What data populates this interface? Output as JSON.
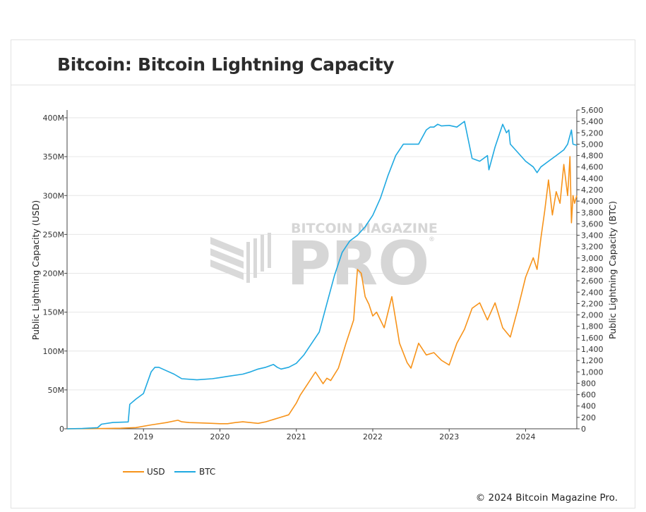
{
  "header": {
    "title": "Bitcoin: Bitcoin Lightning Capacity"
  },
  "footer": {
    "copyright": "© 2024 Bitcoin Magazine Pro."
  },
  "watermark": {
    "top_text": "BITCOIN MAGAZINE",
    "big_text": "PRO",
    "registered": "®"
  },
  "colors": {
    "usd": "#f7931a",
    "btc": "#1fa9e1",
    "grid": "#e6e6e6",
    "axis": "#444444"
  },
  "chart_data": {
    "type": "line",
    "x_ticks": [
      "2019",
      "2020",
      "2021",
      "2022",
      "2023",
      "2024"
    ],
    "x_range": [
      2018.0,
      2024.67
    ],
    "y_left": {
      "label": "Public Lightning Capacity (USD)",
      "range": [
        0,
        410000000
      ],
      "ticks": [
        0,
        50000000,
        100000000,
        150000000,
        200000000,
        250000000,
        300000000,
        350000000,
        400000000
      ],
      "tick_labels": [
        "0",
        "50M",
        "100M",
        "150M",
        "200M",
        "250M",
        "300M",
        "350M",
        "400M"
      ]
    },
    "y_right": {
      "label": "Public Lightning Capacity (BTC)",
      "range": [
        0,
        5600
      ],
      "ticks": [
        0,
        200,
        400,
        600,
        800,
        1000,
        1200,
        1400,
        1600,
        1800,
        2000,
        2200,
        2400,
        2600,
        2800,
        3000,
        3200,
        3400,
        3600,
        3800,
        4000,
        4200,
        4400,
        4600,
        4800,
        5000,
        5200,
        5400,
        5600
      ],
      "tick_labels": [
        "0",
        "200",
        "400",
        "600",
        "800",
        "1,000",
        "1,200",
        "1,400",
        "1,600",
        "1,800",
        "2,000",
        "2,200",
        "2,400",
        "2,600",
        "2,800",
        "3,000",
        "3,200",
        "3,400",
        "3,600",
        "3,800",
        "4,000",
        "4,200",
        "4,400",
        "4,600",
        "4,800",
        "5,000",
        "5,200",
        "5,400",
        "5,600"
      ]
    },
    "legend": {
      "placement": "bottom-left"
    },
    "series": [
      {
        "name": "USD",
        "axis": "left",
        "color": "#f7931a",
        "x": [
          2018.0,
          2018.3,
          2018.5,
          2018.7,
          2018.9,
          2019.1,
          2019.3,
          2019.45,
          2019.5,
          2019.6,
          2019.75,
          2019.9,
          2020.0,
          2020.1,
          2020.2,
          2020.3,
          2020.4,
          2020.5,
          2020.6,
          2020.7,
          2020.8,
          2020.9,
          2021.0,
          2021.05,
          2021.15,
          2021.25,
          2021.35,
          2021.4,
          2021.45,
          2021.55,
          2021.65,
          2021.7,
          2021.75,
          2021.8,
          2021.85,
          2021.9,
          2021.95,
          2022.0,
          2022.05,
          2022.15,
          2022.25,
          2022.3,
          2022.35,
          2022.45,
          2022.5,
          2022.6,
          2022.7,
          2022.8,
          2022.9,
          2023.0,
          2023.1,
          2023.2,
          2023.3,
          2023.4,
          2023.5,
          2023.6,
          2023.7,
          2023.8,
          2023.9,
          2024.0,
          2024.1,
          2024.15,
          2024.2,
          2024.25,
          2024.3,
          2024.35,
          2024.4,
          2024.45,
          2024.5,
          2024.55,
          2024.58,
          2024.6,
          2024.62,
          2024.64,
          2024.67
        ],
        "values": [
          0,
          200000,
          400000,
          700000,
          1500000,
          5000000,
          8000000,
          11000000,
          9000000,
          8000000,
          7500000,
          7000000,
          6500000,
          6500000,
          8000000,
          9000000,
          8000000,
          7000000,
          9000000,
          12000000,
          15000000,
          18000000,
          33000000,
          43000000,
          58000000,
          73000000,
          58000000,
          65000000,
          62000000,
          78000000,
          110000000,
          125000000,
          140000000,
          205000000,
          200000000,
          170000000,
          160000000,
          145000000,
          150000000,
          130000000,
          170000000,
          140000000,
          110000000,
          85000000,
          78000000,
          110000000,
          95000000,
          98000000,
          88000000,
          82000000,
          110000000,
          128000000,
          155000000,
          162000000,
          140000000,
          162000000,
          130000000,
          118000000,
          155000000,
          195000000,
          220000000,
          205000000,
          245000000,
          280000000,
          320000000,
          275000000,
          305000000,
          290000000,
          340000000,
          300000000,
          350000000,
          265000000,
          300000000,
          290000000,
          300000000
        ]
      },
      {
        "name": "BTC",
        "axis": "right",
        "color": "#1fa9e1",
        "x": [
          2018.0,
          2018.2,
          2018.4,
          2018.45,
          2018.6,
          2018.8,
          2018.82,
          2018.9,
          2019.0,
          2019.1,
          2019.15,
          2019.2,
          2019.3,
          2019.4,
          2019.5,
          2019.7,
          2019.9,
          2020.0,
          2020.1,
          2020.3,
          2020.4,
          2020.5,
          2020.6,
          2020.7,
          2020.75,
          2020.8,
          2020.9,
          2021.0,
          2021.1,
          2021.2,
          2021.3,
          2021.4,
          2021.5,
          2021.6,
          2021.7,
          2021.8,
          2021.9,
          2022.0,
          2022.1,
          2022.2,
          2022.3,
          2022.4,
          2022.5,
          2022.6,
          2022.7,
          2022.75,
          2022.8,
          2022.85,
          2022.9,
          2023.0,
          2023.1,
          2023.2,
          2023.3,
          2023.4,
          2023.5,
          2023.52,
          2023.6,
          2023.7,
          2023.75,
          2023.78,
          2023.8,
          2023.9,
          2024.0,
          2024.1,
          2024.15,
          2024.2,
          2024.3,
          2024.4,
          2024.5,
          2024.55,
          2024.6,
          2024.62,
          2024.67
        ],
        "values": [
          0,
          5,
          20,
          80,
          110,
          120,
          430,
          520,
          620,
          1000,
          1080,
          1080,
          1020,
          960,
          880,
          860,
          880,
          900,
          920,
          960,
          1000,
          1050,
          1080,
          1130,
          1080,
          1050,
          1080,
          1150,
          1300,
          1500,
          1700,
          2200,
          2700,
          3100,
          3300,
          3400,
          3550,
          3750,
          4050,
          4450,
          4800,
          5000,
          5000,
          5000,
          5250,
          5300,
          5300,
          5350,
          5320,
          5330,
          5300,
          5400,
          4750,
          4700,
          4800,
          4550,
          4950,
          5350,
          5200,
          5250,
          5000,
          4850,
          4700,
          4600,
          4500,
          4600,
          4700,
          4800,
          4900,
          5000,
          5250,
          5000,
          4980
        ]
      }
    ]
  }
}
